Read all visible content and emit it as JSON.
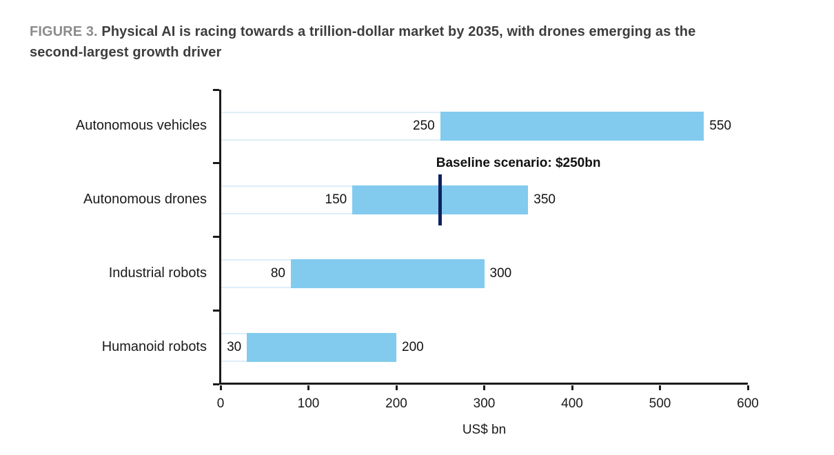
{
  "header": {
    "figure_label": "FIGURE 3.",
    "title_line1": "Physical AI is racing towards a trillion-dollar market by 2035, with drones  emerging as the",
    "title_line2": "second-largest growth driver"
  },
  "chart_data": {
    "type": "bar",
    "orientation": "horizontal",
    "subtype": "floating-range",
    "title": "FIGURE 3. Physical AI is racing towards a trillion-dollar market by 2035, with drones emerging as the second-largest growth driver",
    "categories": [
      "Autonomous vehicles",
      "Autonomous drones",
      "Industrial robots",
      "Humanoid robots"
    ],
    "ranges": [
      {
        "min": 250,
        "max": 550
      },
      {
        "min": 150,
        "max": 350
      },
      {
        "min": 80,
        "max": 300
      },
      {
        "min": 30,
        "max": 200
      }
    ],
    "annotation": {
      "text": "Baseline scenario: $250bn",
      "value": 250,
      "row": "Autonomous drones",
      "row_index": 1
    },
    "xlabel": "US$ bn",
    "xlim": [
      0,
      600
    ],
    "xticks": [
      0,
      100,
      200,
      300,
      400,
      500,
      600
    ],
    "grid": false,
    "legend": false,
    "colors": {
      "bar_fill": "#82cbee",
      "base_bar_edge": "#ddeef8",
      "baseline_marker": "#0f2161",
      "axis": "#1a1a1a",
      "title_text": "#3d3d3d",
      "figure_label": "#8b8b8b"
    }
  }
}
